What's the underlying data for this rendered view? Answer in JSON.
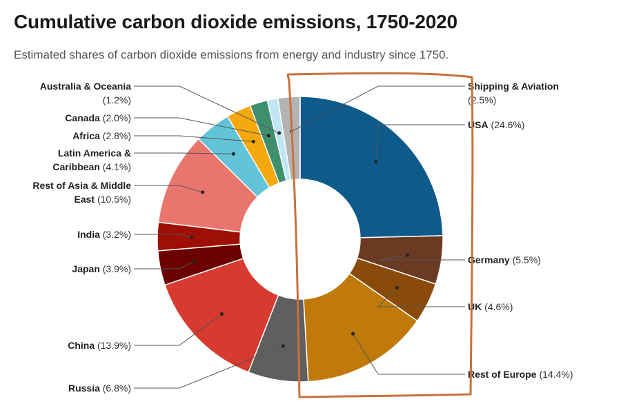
{
  "header": {
    "title": "Cumulative carbon dioxide emissions, 1750-2020",
    "subtitle": "Estimated shares of carbon dioxide emissions from energy and industry since 1750."
  },
  "colors": {
    "annotation": "#c8703a",
    "leader": "#555555"
  },
  "chart_data": {
    "type": "pie",
    "variant": "donut",
    "title": "Cumulative carbon dioxide emissions, 1750-2020",
    "subtitle": "Estimated shares of carbon dioxide emissions from energy and industry since 1750.",
    "unit": "%",
    "slices": [
      {
        "name": "USA",
        "pct": "24.6%",
        "value": 24.6,
        "color": "#0e5a8a"
      },
      {
        "name": "Germany",
        "pct": "5.5%",
        "value": 5.5,
        "color": "#6b3a22"
      },
      {
        "name": "UK",
        "pct": "4.6%",
        "value": 4.6,
        "color": "#8a4b0a"
      },
      {
        "name": "Rest of Europe",
        "pct": "14.4%",
        "value": 14.4,
        "color": "#c07a0c"
      },
      {
        "name": "Russia",
        "pct": "6.8%",
        "value": 6.8,
        "color": "#5f5f5f"
      },
      {
        "name": "China",
        "pct": "13.9%",
        "value": 13.9,
        "color": "#d73a2e"
      },
      {
        "name": "Japan",
        "pct": "3.9%",
        "value": 3.9,
        "color": "#6b0000"
      },
      {
        "name": "India",
        "pct": "3.2%",
        "value": 3.2,
        "color": "#9e0f06"
      },
      {
        "name": "Rest of Asia & Middle East",
        "pct": "10.5%",
        "value": 10.5,
        "color": "#e8766d"
      },
      {
        "name": "Latin America & Caribbean",
        "pct": "4.1%",
        "value": 4.1,
        "color": "#63c3d8"
      },
      {
        "name": "Africa",
        "pct": "2.8%",
        "value": 2.8,
        "color": "#f5a90f"
      },
      {
        "name": "Canada",
        "pct": "2.0%",
        "value": 2.0,
        "color": "#3f8f6e"
      },
      {
        "name": "Australia & Oceania",
        "pct": "1.2%",
        "value": 1.2,
        "color": "#bfe6f2"
      },
      {
        "name": "Shipping & Aviation",
        "pct": "2.5%",
        "value": 2.5,
        "color": "#b3b3b3"
      }
    ]
  }
}
